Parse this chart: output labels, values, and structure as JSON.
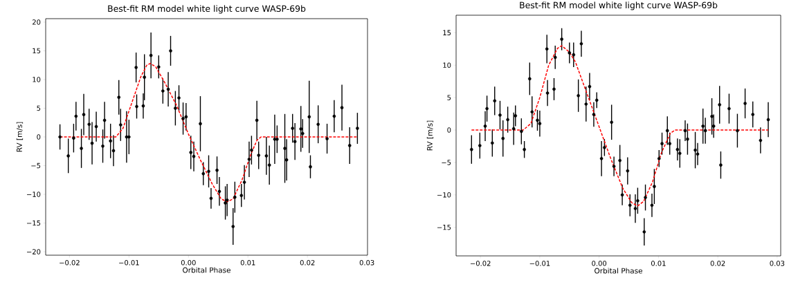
{
  "chart_data": [
    {
      "type": "scatter",
      "title": "Best-fit RM model white light curve WASP-69b",
      "xlabel": "Orbital Phase",
      "ylabel": "RV [m/s]",
      "xlim": [
        -0.024,
        0.0301
      ],
      "ylim": [
        -20.6,
        20.6
      ],
      "xticks": [
        {
          "value": -0.02,
          "label": "−0.02"
        },
        {
          "value": -0.01,
          "label": "−0.01"
        },
        {
          "value": 0,
          "label": "0.00"
        },
        {
          "value": 0.01,
          "label": "0.01"
        },
        {
          "value": 0.02,
          "label": "0.02"
        },
        {
          "value": 0.03,
          "label": "0.03"
        }
      ],
      "yticks": [
        {
          "value": -20,
          "label": "−20"
        },
        {
          "value": -15,
          "label": "−15"
        },
        {
          "value": -10,
          "label": "−10"
        },
        {
          "value": -5,
          "label": "−5"
        },
        0,
        5,
        10,
        15,
        20
      ],
      "series": [
        {
          "color": "#000000",
          "marker": "circle",
          "x": [
            -0.0216,
            -0.0202,
            -0.0193,
            -0.0189,
            -0.018,
            -0.0176,
            -0.0167,
            -0.0162,
            -0.0155,
            -0.0144,
            -0.0141,
            -0.0131,
            -0.0126,
            -0.0117,
            -0.0114,
            -0.0104,
            -0.01,
            -0.0088,
            -0.0087,
            -0.0076,
            -0.0074,
            -0.0063,
            -0.005,
            -0.0043,
            -0.0034,
            -0.003,
            -0.0022,
            -0.0016,
            -0.0009,
            -0.0004,
            0.0004,
            0.0009,
            0.002,
            0.0025,
            0.0034,
            0.0038,
            0.0048,
            0.0052,
            0.0062,
            0.0065,
            0.0075,
            0.0078,
            0.0089,
            0.0094,
            0.0102,
            0.0106,
            0.0115,
            0.0118,
            0.0131,
            0.0136,
            0.0145,
            0.0149,
            0.0162,
            0.0165,
            0.0175,
            0.0179,
            0.0189,
            0.0192,
            0.0203,
            0.0205,
            0.0218,
            0.0233,
            0.0245,
            0.0258,
            0.0271,
            0.0284
          ],
          "values": [
            0.0,
            -3.3,
            -0.2,
            3.6,
            -2.0,
            3.9,
            2.2,
            -1.1,
            1.8,
            -1.6,
            2.9,
            -0.7,
            -2.4,
            6.9,
            2.1,
            0.0,
            0.0,
            12.1,
            5.3,
            5.4,
            10.4,
            14.2,
            12.2,
            8.0,
            8.3,
            15.0,
            5.0,
            6.8,
            3.2,
            3.5,
            -2.7,
            -3.4,
            2.3,
            -6.4,
            -6.0,
            -10.7,
            -5.8,
            -9.5,
            -11.5,
            -11.0,
            -15.6,
            -10.5,
            -10.2,
            -7.9,
            -3.9,
            -2.3,
            2.9,
            -3.2,
            -3.3,
            -4.9,
            -0.4,
            -0.4,
            -2.0,
            -4.0,
            1.5,
            -0.8,
            1.4,
            0.6,
            3.5,
            -5.2,
            2.2,
            -0.3,
            3.6,
            5.1,
            -1.5,
            1.5
          ],
          "errors": [
            2.2,
            3.0,
            2.5,
            2.5,
            3.4,
            3.6,
            2.7,
            3.7,
            2.6,
            2.9,
            3.2,
            3.0,
            2.7,
            3.0,
            2.8,
            4.5,
            3.0,
            2.6,
            2.1,
            2.2,
            4.0,
            4.0,
            2.0,
            2.2,
            3.0,
            2.6,
            3.0,
            2.2,
            2.8,
            2.4,
            2.9,
            2.6,
            4.8,
            2.0,
            2.8,
            1.8,
            2.4,
            2.5,
            2.9,
            2.8,
            3.2,
            2.7,
            2.0,
            3.0,
            3.1,
            2.5,
            3.4,
            2.4,
            3.3,
            3.4,
            4.3,
            2.4,
            6.0,
            3.6,
            2.5,
            3.2,
            4.0,
            2.5,
            6.3,
            2.0,
            3.3,
            2.6,
            2.8,
            4.0,
            3.2,
            2.7
          ]
        },
        {
          "type": "line",
          "color": "#ff0000",
          "line_style": "dashed",
          "x": [
            -0.0216,
            -0.0122,
            -0.011,
            -0.0095,
            -0.008,
            -0.007,
            -0.0064,
            -0.0055,
            -0.004,
            -0.002,
            0,
            0.002,
            0.004,
            0.0055,
            0.0065,
            0.0075,
            0.009,
            0.0105,
            0.0115,
            0.0122,
            0.0284
          ],
          "values": [
            0,
            0,
            1.5,
            6,
            10.5,
            12.5,
            12.8,
            12.2,
            9.5,
            5.5,
            0.5,
            -4,
            -8.2,
            -10.8,
            -11.3,
            -10.8,
            -7.5,
            -3,
            -0.6,
            0,
            0
          ]
        }
      ]
    },
    {
      "type": "scatter",
      "title": "Best-fit RM model white light curve WASP-69b",
      "xlabel": "Orbital Phase",
      "ylabel": "RV [m/s]",
      "xlim": [
        -0.0241,
        0.0306
      ],
      "ylim": [
        -19.4,
        17.7
      ],
      "xticks": [
        {
          "value": -0.02,
          "label": "−0.02"
        },
        {
          "value": -0.01,
          "label": "−0.01"
        },
        {
          "value": 0,
          "label": "0.00"
        },
        {
          "value": 0.01,
          "label": "0.01"
        },
        {
          "value": 0.02,
          "label": "0.02"
        },
        {
          "value": 0.03,
          "label": "0.03"
        }
      ],
      "yticks": [
        {
          "value": -15,
          "label": "−15"
        },
        {
          "value": -10,
          "label": "−10"
        },
        {
          "value": -5,
          "label": "−5"
        },
        0,
        5,
        10,
        15
      ],
      "series": [
        {
          "color": "#000000",
          "marker": "circle",
          "x": [
            -0.0215,
            -0.0201,
            -0.0192,
            -0.0189,
            -0.018,
            -0.0176,
            -0.0167,
            -0.0162,
            -0.0154,
            -0.0144,
            -0.0141,
            -0.0131,
            -0.0126,
            -0.0117,
            -0.0113,
            -0.0104,
            -0.01,
            -0.0088,
            -0.0087,
            -0.0076,
            -0.0074,
            -0.0063,
            -0.005,
            -0.0043,
            -0.0035,
            -0.003,
            -0.0022,
            -0.0016,
            -0.0009,
            -0.0004,
            0.0004,
            0.0009,
            0.0021,
            0.0025,
            0.0035,
            0.0039,
            0.0048,
            0.0052,
            0.0061,
            0.0065,
            0.0076,
            0.0078,
            0.0089,
            0.0093,
            0.0101,
            0.0106,
            0.0115,
            0.0119,
            0.0132,
            0.0136,
            0.0145,
            0.0149,
            0.0162,
            0.0166,
            0.0175,
            0.0179,
            0.019,
            0.0193,
            0.0203,
            0.0205,
            0.0219,
            0.0233,
            0.0246,
            0.0259,
            0.0272,
            0.0285
          ],
          "values": [
            -3.0,
            -2.4,
            0.6,
            3.3,
            -2.0,
            4.5,
            2.3,
            -1.3,
            1.6,
            0.2,
            2.2,
            -0.2,
            -3.0,
            7.9,
            2.8,
            1.5,
            1.0,
            12.5,
            5.7,
            6.3,
            11.2,
            14.0,
            11.9,
            11.6,
            5.3,
            13.3,
            4.0,
            6.7,
            2.4,
            4.6,
            -4.4,
            -2.7,
            1.2,
            -5.6,
            -4.7,
            -10.0,
            -6.3,
            -11.6,
            -12.1,
            -10.9,
            -15.7,
            -10.4,
            -11.6,
            -8.7,
            -4.4,
            -2.1,
            -0.1,
            -2.1,
            -3.0,
            -3.6,
            -0.1,
            -1.4,
            -3.1,
            -3.7,
            0.6,
            -0.1,
            2.1,
            0.6,
            3.9,
            -5.4,
            3.3,
            -0.1,
            4.1,
            2.4,
            -1.6,
            1.6
          ],
          "errors": [
            2.2,
            2.0,
            2.3,
            2.0,
            2.1,
            2.2,
            2.2,
            2.8,
            2.0,
            2.5,
            1.6,
            2.0,
            1.3,
            2.5,
            2.4,
            1.6,
            2.0,
            2.2,
            2.0,
            1.7,
            1.8,
            1.7,
            1.6,
            1.9,
            2.5,
            2.0,
            2.7,
            2.1,
            1.9,
            1.2,
            2.7,
            1.3,
            2.7,
            1.5,
            2.4,
            1.6,
            2.1,
            1.7,
            2.2,
            2.0,
            2.1,
            2.0,
            1.8,
            2.7,
            1.3,
            1.7,
            2.2,
            1.7,
            1.7,
            2.2,
            1.6,
            2.4,
            2.8,
            1.7,
            2.7,
            2.0,
            2.8,
            1.8,
            2.9,
            2.1,
            2.3,
            2.6,
            2.3,
            2.0,
            2.0,
            2.7
          ]
        },
        {
          "type": "line",
          "color": "#ff0000",
          "line_style": "dashed",
          "x": [
            -0.0215,
            -0.0128,
            -0.0115,
            -0.01,
            -0.0085,
            -0.007,
            -0.0063,
            -0.005,
            -0.004,
            -0.002,
            0,
            0.002,
            0.004,
            0.0055,
            0.0065,
            0.0075,
            0.009,
            0.0105,
            0.012,
            0.0128,
            0.0285
          ],
          "values": [
            0,
            0,
            1,
            5,
            10,
            12.6,
            13,
            12,
            10.5,
            5.5,
            0.5,
            -4.5,
            -9,
            -11.2,
            -11.7,
            -11,
            -8,
            -3.5,
            -0.5,
            0,
            0
          ]
        }
      ]
    }
  ]
}
